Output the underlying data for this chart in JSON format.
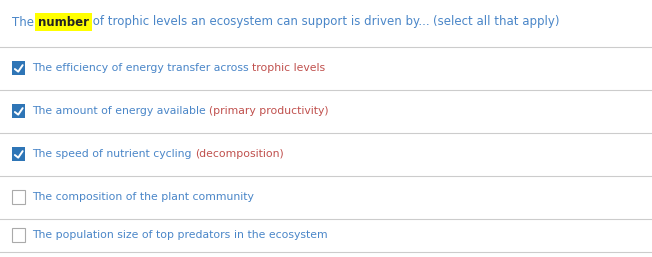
{
  "bg_color": "#ffffff",
  "line_color": "#cccccc",
  "checkbox_checked_color": "#2e75b6",
  "checkbox_unchecked_border": "#aaaaaa",
  "title_font_size": 8.5,
  "option_font_size": 7.8,
  "title_color": "#4a86c8",
  "highlight_color": "#ffff00",
  "highlight_text_color": "#222222",
  "red_color": "#c0504d",
  "title_parts": [
    {
      "text": "The ",
      "color": "#4a86c8",
      "bold": false,
      "highlight": false
    },
    {
      "text": "number",
      "color": "#222222",
      "bold": true,
      "highlight": true
    },
    {
      "text": " of trophic levels an ecosystem can support is driven by... ",
      "color": "#4a86c8",
      "bold": false,
      "highlight": false
    },
    {
      "text": "(select all that apply)",
      "color": "#4a86c8",
      "bold": false,
      "highlight": false
    }
  ],
  "options": [
    {
      "checked": true,
      "parts": [
        {
          "text": "The efficiency of energy transfer across ",
          "color": "#4a86c8"
        },
        {
          "text": "trophic levels",
          "color": "#c0504d"
        }
      ]
    },
    {
      "checked": true,
      "parts": [
        {
          "text": "The amount of energy available ",
          "color": "#4a86c8"
        },
        {
          "text": "(primary productivity)",
          "color": "#c0504d"
        }
      ]
    },
    {
      "checked": true,
      "parts": [
        {
          "text": "The speed of nutrient cycling ",
          "color": "#4a86c8"
        },
        {
          "text": "(decomposition)",
          "color": "#c0504d"
        }
      ]
    },
    {
      "checked": false,
      "parts": [
        {
          "text": "The composition of the plant community",
          "color": "#4a86c8"
        }
      ]
    },
    {
      "checked": false,
      "parts": [
        {
          "text": "The population size of top predators ",
          "color": "#4a86c8"
        },
        {
          "text": "in",
          "color": "#4a86c8"
        },
        {
          "text": " the ecosystem",
          "color": "#4a86c8"
        }
      ]
    }
  ]
}
